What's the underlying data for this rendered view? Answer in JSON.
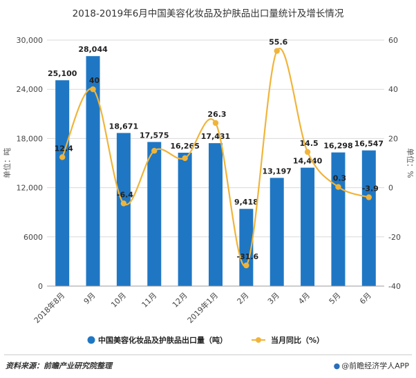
{
  "chart_data": {
    "type": "bar",
    "title": "2018-2019年6月中国美容化妆品及护肤品出口量统计及增长情况",
    "categories": [
      "2018年8月",
      "9月",
      "10月",
      "11月",
      "12月",
      "2019年1月",
      "2月",
      "3月",
      "4月",
      "5月",
      "6月"
    ],
    "series": [
      {
        "name": "中国美容化妆品及护肤品出口量（吨）",
        "type": "bar",
        "axis": "left",
        "values": [
          25100,
          28044,
          18671,
          17575,
          16265,
          17431,
          9418,
          13197,
          14440,
          16298,
          16547
        ],
        "labels": [
          "25,100",
          "28,044",
          "18,671",
          "17,575",
          "16,265",
          "17,431",
          "9,418",
          "13,197",
          "14,440",
          "16,298",
          "16,547"
        ]
      },
      {
        "name": "当月同比（%）",
        "type": "line",
        "axis": "right",
        "values": [
          12.4,
          40,
          -6.4,
          15,
          12,
          26.3,
          -31.6,
          55.6,
          14.5,
          0.3,
          -3.9
        ],
        "labels": [
          "12.4",
          "40",
          "-6.4",
          "",
          "",
          "26.3",
          "-31.6",
          "55.6",
          "14.5",
          "0.3",
          "-3.9"
        ]
      }
    ],
    "left_axis": {
      "label": "单位：吨",
      "ylim": [
        0,
        30000
      ],
      "ticks": [
        0,
        6000,
        12000,
        18000,
        24000,
        30000
      ],
      "tick_labels": [
        "0",
        "6000",
        "12,000",
        "18,000",
        "24,000",
        "30,000"
      ]
    },
    "right_axis": {
      "label": "单位：%",
      "ylim": [
        -40,
        60
      ],
      "ticks": [
        -40,
        -20,
        0,
        20,
        40,
        60
      ],
      "tick_labels": [
        "-40",
        "-20",
        "0",
        "20",
        "40",
        "60"
      ]
    },
    "legend_position": "bottom-center",
    "colors": {
      "bar": "#1f77c4",
      "line": "#f0b43a"
    }
  },
  "footer": {
    "source": "资料来源：前瞻产业研究院整理",
    "brand": "@前瞻经济学人APP"
  }
}
